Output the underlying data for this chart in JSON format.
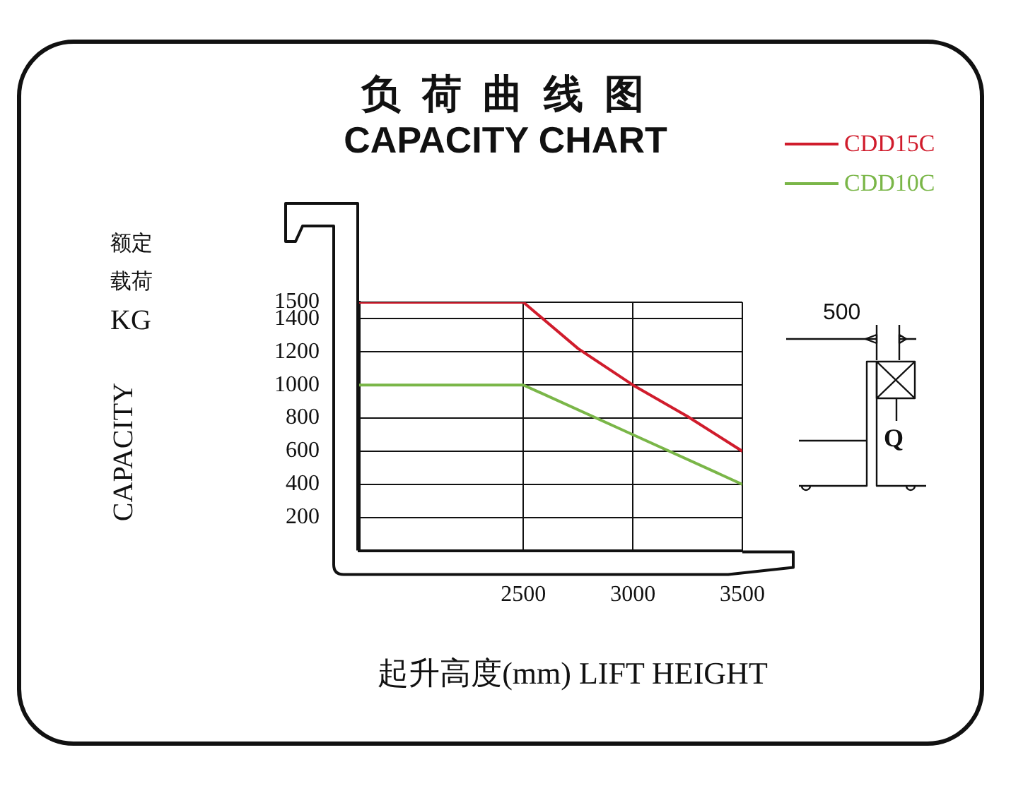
{
  "chart_data": {
    "type": "line",
    "title": "负 荷 曲 线 图",
    "subtitle": "CAPACITY CHART",
    "xlabel": "起升高度(mm)  LIFT HEIGHT",
    "annotations": [
      "额定",
      "载荷",
      "KG",
      "CAPACITY",
      "500",
      "Q"
    ],
    "series": [
      {
        "name": "CDD15C",
        "color": "#d01c2c",
        "x": [
          1750,
          2500,
          2750,
          3000,
          3250,
          3500
        ],
        "values": [
          1500,
          1500,
          1220,
          1000,
          810,
          600
        ]
      },
      {
        "name": "CDD10C",
        "color": "#7ab648",
        "x": [
          1750,
          2500,
          3000,
          3500
        ],
        "values": [
          1000,
          1000,
          700,
          400
        ]
      }
    ],
    "xlim": [
      1750,
      3500
    ],
    "xticks": [
      2500,
      3000,
      3500
    ],
    "ylim": [
      0,
      1500
    ],
    "yticks": [
      200,
      400,
      600,
      800,
      1000,
      1200,
      1400,
      1500
    ],
    "grid": true,
    "legend": "top right",
    "marker": "none",
    "line_style": "solid"
  }
}
